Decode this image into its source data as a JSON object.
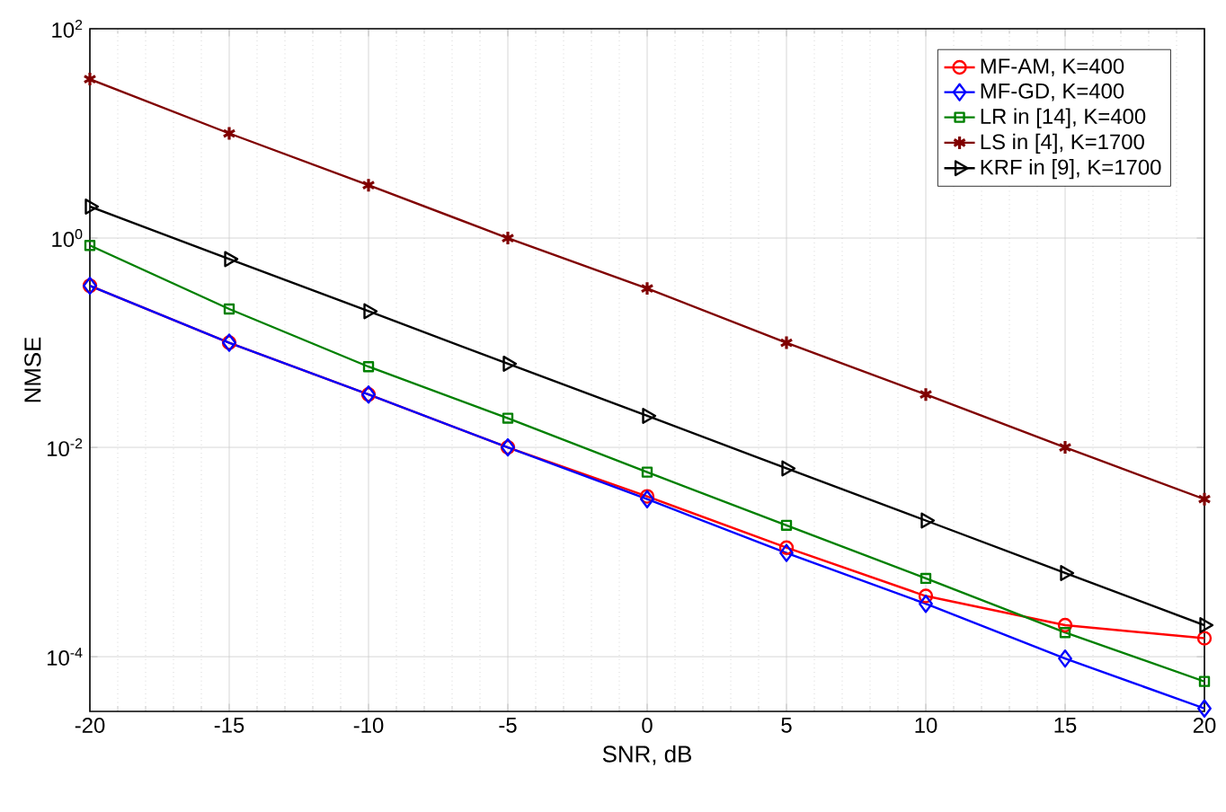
{
  "chart_data": {
    "type": "line",
    "xlabel": "SNR, dB",
    "ylabel": "NMSE",
    "log": "y",
    "grid": true,
    "legend": "top right",
    "x": [
      -20,
      -15,
      -10,
      -5,
      0,
      5,
      10,
      15,
      20
    ],
    "xlim": [
      -20,
      20
    ],
    "xticks": [
      -20,
      -15,
      -10,
      -5,
      0,
      5,
      10,
      15,
      20
    ],
    "ylim": [
      3e-05,
      100
    ],
    "yticks": [
      {
        "value": 0.0001,
        "label": "10$^{-4}$"
      },
      {
        "value": 0.01,
        "label": "10$^{-2}$"
      },
      {
        "value": 1,
        "label": "10$^{0}$"
      },
      {
        "value": 100,
        "label": "10$^{2}$"
      }
    ],
    "series": [
      {
        "name": "MF-AM, K=400",
        "color": "#ff0000",
        "marker": "circle",
        "values": [
          0.35,
          0.1,
          0.032,
          0.01,
          0.0034,
          0.0011,
          0.00038,
          0.0002,
          0.00015
        ]
      },
      {
        "name": "MF-GD, K=400",
        "color": "#0000ff",
        "marker": "diamond",
        "values": [
          0.35,
          0.1,
          0.032,
          0.01,
          0.0032,
          0.00098,
          0.00032,
          9.6e-05,
          3.2e-05
        ]
      },
      {
        "name": "LR in [14], K=400",
        "color": "#008000",
        "marker": "square",
        "values": [
          0.85,
          0.21,
          0.059,
          0.019,
          0.0058,
          0.0018,
          0.00056,
          0.00017,
          5.8e-05
        ]
      },
      {
        "name": "LS in [4], K=1700",
        "color": "#800000",
        "marker": "cross",
        "values": [
          33,
          10,
          3.2,
          1.0,
          0.33,
          0.1,
          0.032,
          0.01,
          0.0032
        ]
      },
      {
        "name": "KRF in [9], K=1700",
        "color": "#000000",
        "marker": "triangle",
        "values": [
          2.0,
          0.63,
          0.2,
          0.063,
          0.02,
          0.0063,
          0.002,
          0.00063,
          0.0002
        ]
      }
    ]
  }
}
